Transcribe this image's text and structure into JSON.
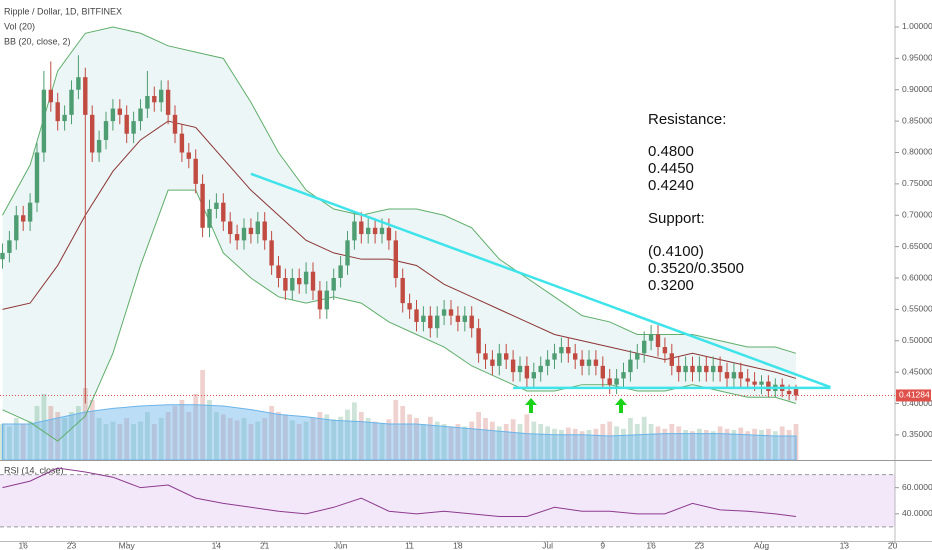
{
  "chart_data": {
    "type": "candlestick",
    "title": "Ripple / Dollar, 1D, BITFINEX",
    "up_color": "#4f9d72",
    "down_color": "#c14a41",
    "dates": [
      "04-13",
      "04-14",
      "04-15",
      "04-16",
      "04-17",
      "04-18",
      "04-19",
      "04-20",
      "04-21",
      "04-22",
      "04-23",
      "04-24",
      "04-25",
      "04-26",
      "04-27",
      "04-28",
      "04-29",
      "04-30",
      "05-01",
      "05-02",
      "05-03",
      "05-04",
      "05-05",
      "05-06",
      "05-07",
      "05-08",
      "05-09",
      "05-10",
      "05-11",
      "05-12",
      "05-13",
      "05-14",
      "05-15",
      "05-16",
      "05-17",
      "05-18",
      "05-19",
      "05-20",
      "05-21",
      "05-22",
      "05-23",
      "05-24",
      "05-25",
      "05-26",
      "05-27",
      "05-28",
      "05-29",
      "05-30",
      "05-31",
      "06-01",
      "06-02",
      "06-03",
      "06-04",
      "06-05",
      "06-06",
      "06-07",
      "06-08",
      "06-09",
      "06-10",
      "06-11",
      "06-12",
      "06-13",
      "06-14",
      "06-15",
      "06-16",
      "06-17",
      "06-18",
      "06-19",
      "06-20",
      "06-21",
      "06-22",
      "06-23",
      "06-24",
      "06-25",
      "06-26",
      "06-27",
      "06-28",
      "06-29",
      "06-30",
      "07-01",
      "07-02",
      "07-03",
      "07-04",
      "07-05",
      "07-06",
      "07-07",
      "07-08",
      "07-09",
      "07-10",
      "07-11",
      "07-12",
      "07-13",
      "07-14",
      "07-15",
      "07-16",
      "07-17",
      "07-18",
      "07-19",
      "07-20",
      "07-21",
      "07-22",
      "07-23",
      "07-24",
      "07-25",
      "07-26",
      "07-27",
      "07-28",
      "07-29",
      "07-30",
      "07-31",
      "08-01",
      "08-02",
      "08-03",
      "08-04",
      "08-05",
      "08-06"
    ],
    "candles": [
      [
        0.63,
        0.655,
        0.615,
        0.64
      ],
      [
        0.64,
        0.675,
        0.625,
        0.66
      ],
      [
        0.66,
        0.715,
        0.645,
        0.7
      ],
      [
        0.7,
        0.715,
        0.675,
        0.69
      ],
      [
        0.69,
        0.735,
        0.675,
        0.72
      ],
      [
        0.72,
        0.815,
        0.705,
        0.8
      ],
      [
        0.8,
        0.93,
        0.785,
        0.9
      ],
      [
        0.9,
        0.945,
        0.865,
        0.88
      ],
      [
        0.88,
        0.895,
        0.835,
        0.85
      ],
      [
        0.85,
        0.875,
        0.835,
        0.86
      ],
      [
        0.86,
        0.915,
        0.845,
        0.9
      ],
      [
        0.9,
        0.955,
        0.885,
        0.92
      ],
      [
        0.92,
        0.935,
        0.4,
        0.86
      ],
      [
        0.86,
        0.875,
        0.785,
        0.8
      ],
      [
        0.8,
        0.835,
        0.785,
        0.82
      ],
      [
        0.82,
        0.865,
        0.805,
        0.85
      ],
      [
        0.85,
        0.885,
        0.835,
        0.87
      ],
      [
        0.87,
        0.885,
        0.845,
        0.86
      ],
      [
        0.86,
        0.875,
        0.815,
        0.83
      ],
      [
        0.83,
        0.865,
        0.815,
        0.85
      ],
      [
        0.85,
        0.885,
        0.835,
        0.87
      ],
      [
        0.87,
        0.93,
        0.855,
        0.89
      ],
      [
        0.89,
        0.905,
        0.865,
        0.88
      ],
      [
        0.88,
        0.915,
        0.865,
        0.9
      ],
      [
        0.9,
        0.915,
        0.845,
        0.86
      ],
      [
        0.86,
        0.875,
        0.815,
        0.83
      ],
      [
        0.83,
        0.845,
        0.785,
        0.8
      ],
      [
        0.8,
        0.815,
        0.775,
        0.79
      ],
      [
        0.79,
        0.805,
        0.735,
        0.75
      ],
      [
        0.75,
        0.765,
        0.665,
        0.68
      ],
      [
        0.68,
        0.725,
        0.665,
        0.71
      ],
      [
        0.71,
        0.735,
        0.695,
        0.72
      ],
      [
        0.72,
        0.735,
        0.675,
        0.69
      ],
      [
        0.69,
        0.705,
        0.655,
        0.67
      ],
      [
        0.67,
        0.685,
        0.645,
        0.66
      ],
      [
        0.66,
        0.695,
        0.645,
        0.68
      ],
      [
        0.68,
        0.695,
        0.655,
        0.67
      ],
      [
        0.67,
        0.705,
        0.655,
        0.69
      ],
      [
        0.69,
        0.705,
        0.645,
        0.66
      ],
      [
        0.66,
        0.675,
        0.605,
        0.62
      ],
      [
        0.62,
        0.635,
        0.585,
        0.6
      ],
      [
        0.6,
        0.615,
        0.565,
        0.58
      ],
      [
        0.58,
        0.615,
        0.565,
        0.6
      ],
      [
        0.6,
        0.615,
        0.575,
        0.59
      ],
      [
        0.59,
        0.625,
        0.575,
        0.61
      ],
      [
        0.61,
        0.625,
        0.565,
        0.58
      ],
      [
        0.58,
        0.595,
        0.535,
        0.55
      ],
      [
        0.55,
        0.595,
        0.535,
        0.58
      ],
      [
        0.58,
        0.615,
        0.565,
        0.6
      ],
      [
        0.6,
        0.635,
        0.585,
        0.62
      ],
      [
        0.62,
        0.675,
        0.605,
        0.66
      ],
      [
        0.66,
        0.705,
        0.645,
        0.69
      ],
      [
        0.69,
        0.705,
        0.655,
        0.67
      ],
      [
        0.67,
        0.695,
        0.655,
        0.68
      ],
      [
        0.68,
        0.695,
        0.655,
        0.67
      ],
      [
        0.67,
        0.695,
        0.655,
        0.68
      ],
      [
        0.68,
        0.695,
        0.645,
        0.66
      ],
      [
        0.66,
        0.675,
        0.585,
        0.6
      ],
      [
        0.6,
        0.615,
        0.545,
        0.56
      ],
      [
        0.56,
        0.575,
        0.535,
        0.55
      ],
      [
        0.55,
        0.565,
        0.515,
        0.53
      ],
      [
        0.53,
        0.555,
        0.515,
        0.54
      ],
      [
        0.54,
        0.555,
        0.505,
        0.52
      ],
      [
        0.52,
        0.555,
        0.505,
        0.54
      ],
      [
        0.54,
        0.565,
        0.525,
        0.55
      ],
      [
        0.55,
        0.565,
        0.525,
        0.54
      ],
      [
        0.54,
        0.555,
        0.515,
        0.53
      ],
      [
        0.53,
        0.555,
        0.515,
        0.54
      ],
      [
        0.54,
        0.555,
        0.505,
        0.52
      ],
      [
        0.52,
        0.535,
        0.465,
        0.48
      ],
      [
        0.48,
        0.495,
        0.455,
        0.47
      ],
      [
        0.47,
        0.485,
        0.445,
        0.46
      ],
      [
        0.46,
        0.495,
        0.445,
        0.48
      ],
      [
        0.48,
        0.495,
        0.455,
        0.47
      ],
      [
        0.47,
        0.485,
        0.435,
        0.45
      ],
      [
        0.45,
        0.475,
        0.435,
        0.46
      ],
      [
        0.46,
        0.475,
        0.425,
        0.44
      ],
      [
        0.44,
        0.465,
        0.425,
        0.45
      ],
      [
        0.45,
        0.475,
        0.435,
        0.46
      ],
      [
        0.46,
        0.485,
        0.445,
        0.47
      ],
      [
        0.47,
        0.495,
        0.455,
        0.48
      ],
      [
        0.48,
        0.505,
        0.465,
        0.49
      ],
      [
        0.49,
        0.505,
        0.465,
        0.48
      ],
      [
        0.48,
        0.495,
        0.455,
        0.47
      ],
      [
        0.47,
        0.485,
        0.445,
        0.46
      ],
      [
        0.46,
        0.485,
        0.445,
        0.47
      ],
      [
        0.47,
        0.485,
        0.445,
        0.46
      ],
      [
        0.46,
        0.475,
        0.425,
        0.44
      ],
      [
        0.44,
        0.455,
        0.415,
        0.43
      ],
      [
        0.43,
        0.455,
        0.415,
        0.44
      ],
      [
        0.44,
        0.465,
        0.425,
        0.45
      ],
      [
        0.45,
        0.485,
        0.435,
        0.47
      ],
      [
        0.47,
        0.495,
        0.455,
        0.48
      ],
      [
        0.48,
        0.515,
        0.465,
        0.5
      ],
      [
        0.5,
        0.525,
        0.485,
        0.51
      ],
      [
        0.51,
        0.525,
        0.475,
        0.49
      ],
      [
        0.49,
        0.505,
        0.465,
        0.48
      ],
      [
        0.48,
        0.495,
        0.445,
        0.46
      ],
      [
        0.46,
        0.475,
        0.435,
        0.45
      ],
      [
        0.45,
        0.475,
        0.435,
        0.46
      ],
      [
        0.46,
        0.475,
        0.435,
        0.45
      ],
      [
        0.45,
        0.475,
        0.435,
        0.46
      ],
      [
        0.46,
        0.475,
        0.435,
        0.45
      ],
      [
        0.45,
        0.475,
        0.435,
        0.46
      ],
      [
        0.46,
        0.475,
        0.435,
        0.45
      ],
      [
        0.45,
        0.465,
        0.425,
        0.44
      ],
      [
        0.44,
        0.465,
        0.425,
        0.45
      ],
      [
        0.45,
        0.465,
        0.425,
        0.44
      ],
      [
        0.44,
        0.455,
        0.425,
        0.435
      ],
      [
        0.435,
        0.45,
        0.42,
        0.43
      ],
      [
        0.43,
        0.445,
        0.415,
        0.435
      ],
      [
        0.435,
        0.445,
        0.41,
        0.42
      ],
      [
        0.42,
        0.44,
        0.41,
        0.43
      ],
      [
        0.43,
        0.44,
        0.41,
        0.42
      ],
      [
        0.42,
        0.43,
        0.405,
        0.415
      ],
      [
        0.425,
        0.43,
        0.405,
        0.41284
      ]
    ],
    "ylim": [
      0.31,
      1.043
    ],
    "yticks": [
      {
        "value": 0.35,
        "label": "0.35000"
      },
      {
        "value": 0.4,
        "label": "0.40000"
      },
      {
        "value": 0.45,
        "label": "0.45000"
      },
      {
        "value": 0.5,
        "label": "0.50000"
      },
      {
        "value": 0.55,
        "label": "0.55000"
      },
      {
        "value": 0.6,
        "label": "0.60000"
      },
      {
        "value": 0.65,
        "label": "0.65000"
      },
      {
        "value": 0.7,
        "label": "0.70000"
      },
      {
        "value": 0.75,
        "label": "0.75000"
      },
      {
        "value": 0.8,
        "label": "0.80000"
      },
      {
        "value": 0.85,
        "label": "0.85000"
      },
      {
        "value": 0.9,
        "label": "0.90000"
      },
      {
        "value": 0.95,
        "label": "0.95000"
      },
      {
        "value": 1.0,
        "label": "1.00000"
      }
    ],
    "last_price": 0.41284,
    "last_price_color": "#e0504a",
    "xticks": [
      {
        "value": "04-16",
        "label": "16"
      },
      {
        "value": "04-23",
        "label": "23"
      },
      {
        "value": "05-01",
        "label": "May"
      },
      {
        "value": "05-14",
        "label": "14"
      },
      {
        "value": "05-21",
        "label": "21"
      },
      {
        "value": "06-01",
        "label": "Jun"
      },
      {
        "value": "06-11",
        "label": "11"
      },
      {
        "value": "06-18",
        "label": "18"
      },
      {
        "value": "07-01",
        "label": "Jul"
      },
      {
        "value": "07-09",
        "label": "9"
      },
      {
        "value": "07-16",
        "label": "16"
      },
      {
        "value": "07-23",
        "label": "23"
      },
      {
        "value": "08-01",
        "label": "Aug"
      },
      {
        "value": "08-13",
        "label": "13"
      },
      {
        "value": "08-20",
        "label": "20"
      }
    ],
    "volume": {
      "name": "Vol (20)",
      "ylim": [
        0,
        100
      ],
      "values": [
        30,
        28,
        35,
        30,
        32,
        45,
        55,
        45,
        40,
        35,
        40,
        45,
        60,
        50,
        35,
        30,
        32,
        30,
        35,
        30,
        32,
        40,
        30,
        35,
        40,
        45,
        50,
        40,
        55,
        75,
        50,
        40,
        38,
        35,
        33,
        35,
        30,
        32,
        35,
        45,
        40,
        38,
        33,
        30,
        32,
        35,
        40,
        38,
        34,
        36,
        42,
        48,
        40,
        35,
        32,
        30,
        34,
        50,
        45,
        38,
        35,
        30,
        36,
        32,
        30,
        28,
        30,
        28,
        32,
        40,
        35,
        32,
        28,
        30,
        34,
        30,
        38,
        32,
        30,
        28,
        26,
        25,
        27,
        26,
        24,
        25,
        26,
        30,
        32,
        28,
        26,
        35,
        30,
        36,
        30,
        28,
        26,
        30,
        28,
        25,
        24,
        26,
        25,
        24,
        28,
        26,
        25,
        27,
        24,
        26,
        25,
        26,
        24,
        28,
        25,
        30
      ],
      "ma_color": "#6ab4ea",
      "ma": {
        "x": [
          "04-13",
          "04-17",
          "04-21",
          "04-25",
          "04-29",
          "05-03",
          "05-07",
          "05-11",
          "05-15",
          "05-19",
          "05-23",
          "05-27",
          "05-31",
          "06-04",
          "06-08",
          "06-12",
          "06-16",
          "06-20",
          "06-24",
          "06-28",
          "07-02",
          "07-06",
          "07-10",
          "07-14",
          "07-18",
          "07-22",
          "07-26",
          "07-30",
          "08-03",
          "08-06"
        ],
        "values": [
          30,
          30,
          35,
          40,
          43,
          45,
          46,
          46,
          45,
          42,
          38,
          36,
          33,
          32,
          30,
          30,
          28,
          26,
          24,
          22,
          21,
          21,
          20,
          21,
          22,
          22,
          22,
          21,
          20,
          20
        ]
      }
    },
    "bb": {
      "name": "BB (20, close, 2)",
      "band_color": "#5fae6a",
      "basis_color": "#8c3434",
      "x": [
        "04-13",
        "04-17",
        "04-21",
        "04-25",
        "04-29",
        "05-03",
        "05-07",
        "05-11",
        "05-15",
        "05-19",
        "05-23",
        "05-27",
        "05-31",
        "06-04",
        "06-08",
        "06-12",
        "06-16",
        "06-20",
        "06-24",
        "06-28",
        "07-02",
        "07-06",
        "07-10",
        "07-14",
        "07-18",
        "07-22",
        "07-26",
        "07-30",
        "08-03",
        "08-06"
      ],
      "upper": [
        0.7,
        0.78,
        0.93,
        0.99,
        1.0,
        0.99,
        0.97,
        0.96,
        0.95,
        0.88,
        0.8,
        0.74,
        0.71,
        0.7,
        0.71,
        0.71,
        0.7,
        0.68,
        0.63,
        0.6,
        0.57,
        0.54,
        0.53,
        0.51,
        0.51,
        0.51,
        0.5,
        0.49,
        0.49,
        0.48
      ],
      "middle": [
        0.55,
        0.56,
        0.62,
        0.7,
        0.77,
        0.82,
        0.85,
        0.84,
        0.79,
        0.74,
        0.7,
        0.66,
        0.64,
        0.63,
        0.63,
        0.62,
        0.59,
        0.57,
        0.55,
        0.53,
        0.51,
        0.5,
        0.49,
        0.48,
        0.47,
        0.48,
        0.47,
        0.46,
        0.45,
        0.44
      ],
      "lower": [
        0.39,
        0.37,
        0.34,
        0.38,
        0.48,
        0.62,
        0.74,
        0.74,
        0.64,
        0.6,
        0.57,
        0.56,
        0.57,
        0.56,
        0.53,
        0.51,
        0.49,
        0.46,
        0.44,
        0.42,
        0.42,
        0.43,
        0.43,
        0.42,
        0.42,
        0.43,
        0.42,
        0.41,
        0.41,
        0.4
      ]
    },
    "rsi": {
      "name": "RSI (14, close)",
      "color": "#8e3a8e",
      "ylim": [
        20,
        80
      ],
      "bands": [
        30,
        70
      ],
      "yticks": [
        {
          "value": 40,
          "label": "40.0000"
        },
        {
          "value": 60,
          "label": "60.0000"
        }
      ],
      "x": [
        "04-13",
        "04-17",
        "04-21",
        "04-25",
        "04-29",
        "05-03",
        "05-07",
        "05-11",
        "05-15",
        "05-19",
        "05-23",
        "05-27",
        "05-31",
        "06-04",
        "06-08",
        "06-12",
        "06-16",
        "06-20",
        "06-24",
        "06-28",
        "07-02",
        "07-06",
        "07-10",
        "07-14",
        "07-18",
        "07-22",
        "07-26",
        "07-30",
        "08-03",
        "08-06"
      ],
      "values": [
        60,
        65,
        75,
        72,
        68,
        60,
        62,
        52,
        48,
        45,
        42,
        40,
        45,
        52,
        42,
        40,
        42,
        40,
        38,
        38,
        45,
        42,
        42,
        40,
        40,
        48,
        43,
        42,
        40,
        38
      ]
    },
    "trendline_color": "#3fe3ea",
    "trendlines": [
      {
        "x": [
          "05-19",
          "08-11"
        ],
        "y": [
          0.766,
          0.426
        ]
      },
      {
        "x": [
          "06-26",
          "08-11"
        ],
        "y": [
          0.425,
          0.425
        ]
      }
    ],
    "annotation": {
      "resistance_title": "Resistance:",
      "resistance": [
        "0.4800",
        "0.4450",
        "0.4240"
      ],
      "support_title": "Support:",
      "support": [
        "(0.4100)",
        "0.3520/0.3500",
        "0.3200"
      ]
    }
  }
}
